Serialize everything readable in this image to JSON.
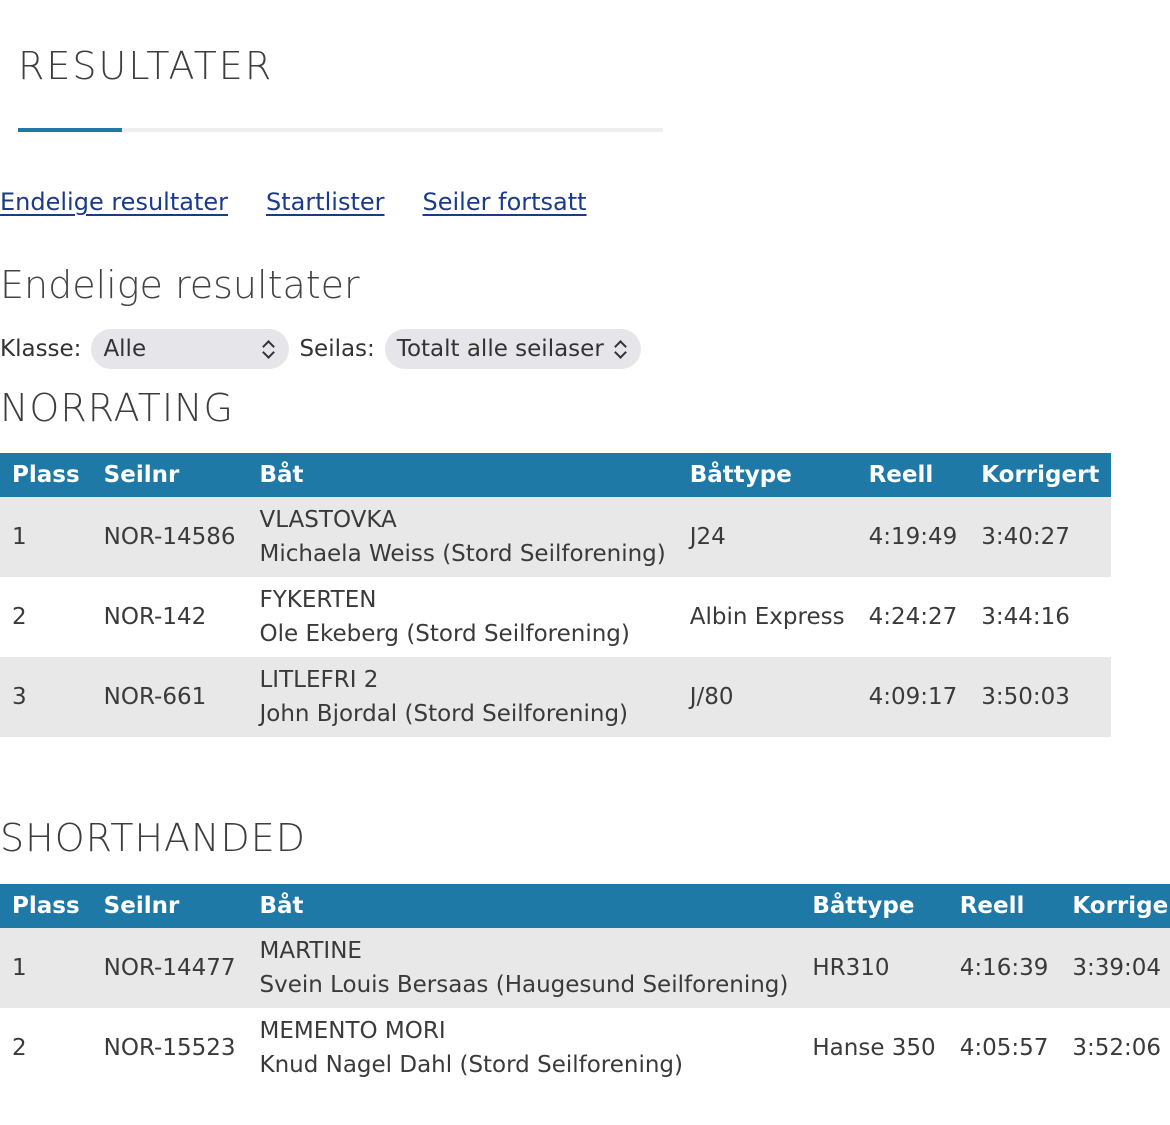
{
  "page_title": "RESULTATER",
  "nav_links": [
    "Endelige resultater",
    "Startlister",
    "Seiler fortsatt"
  ],
  "section_title": "Endelige resultater",
  "filters": {
    "klasse_label": "Klasse:",
    "klasse_value": "Alle",
    "seilas_label": "Seilas:",
    "seilas_value": "Totalt alle seilaser"
  },
  "columns": [
    "Plass",
    "Seilnr",
    "Båt",
    "Båttype",
    "Reell",
    "Korrigert"
  ],
  "classes": [
    {
      "name": "NORRATING",
      "rows": [
        {
          "plass": "1",
          "seilnr": "NOR-14586",
          "boat": "VLASTOVKA",
          "skipper": "Michaela Weiss (Stord Seilforening)",
          "battype": "J24",
          "reell": "4:19:49",
          "korrigert": "3:40:27"
        },
        {
          "plass": "2",
          "seilnr": "NOR-142",
          "boat": "FYKERTEN",
          "skipper": "Ole Ekeberg (Stord Seilforening)",
          "battype": "Albin Express",
          "reell": "4:24:27",
          "korrigert": "3:44:16"
        },
        {
          "plass": "3",
          "seilnr": "NOR-661",
          "boat": "LITLEFRI 2",
          "skipper": "John Bjordal (Stord Seilforening)",
          "battype": "J/80",
          "reell": "4:09:17",
          "korrigert": "3:50:03"
        }
      ]
    },
    {
      "name": "SHORTHANDED",
      "rows": [
        {
          "plass": "1",
          "seilnr": "NOR-14477",
          "boat": "MARTINE",
          "skipper": "Svein Louis Bersaas (Haugesund Seilforening)",
          "battype": "HR310",
          "reell": "4:16:39",
          "korrigert": "3:39:04"
        },
        {
          "plass": "2",
          "seilnr": "NOR-15523",
          "boat": "MEMENTO MORI",
          "skipper": "Knud Nagel Dahl (Stord Seilforening)",
          "battype": "Hanse 350",
          "reell": "4:05:57",
          "korrigert": "3:52:06"
        }
      ]
    }
  ]
}
